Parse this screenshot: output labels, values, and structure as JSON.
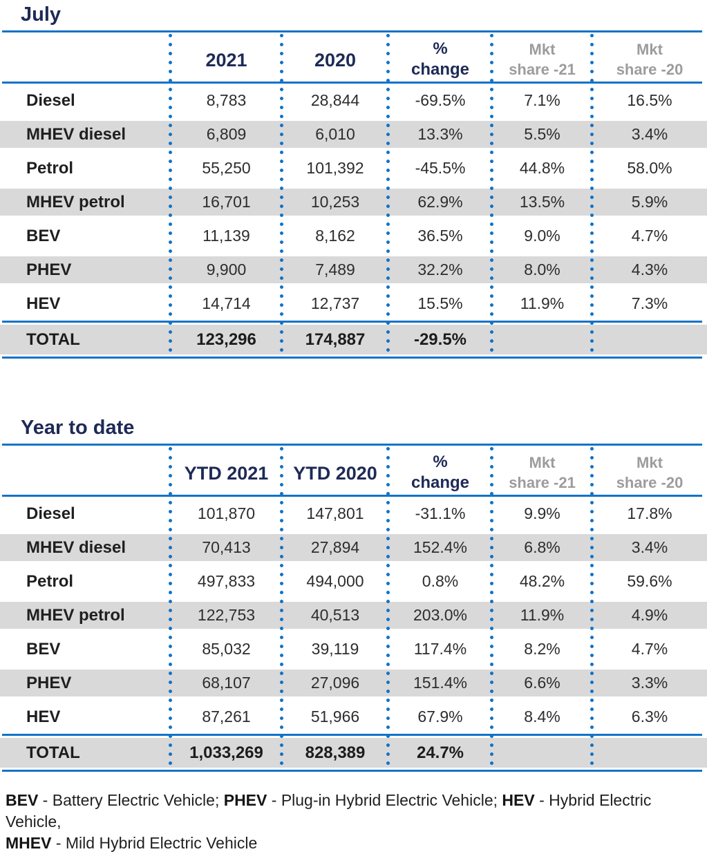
{
  "colors": {
    "rule_blue": "#1273c7",
    "heading_navy": "#1e2a56",
    "muted_header_gray": "#9c9c9c",
    "row_stripe_gray": "#d9d9d9",
    "text_black": "#1f1f1f"
  },
  "july": {
    "title": "July",
    "headers": {
      "year1": "2021",
      "year2": "2020",
      "pct1": "%",
      "pct2": "change",
      "mkt": "Mkt",
      "share21": "share -21",
      "share20": "share -20"
    },
    "rows": [
      {
        "label": "Diesel",
        "y1": "8,783",
        "y2": "28,844",
        "pct": "-69.5%",
        "m21": "7.1%",
        "m20": "16.5%"
      },
      {
        "label": "MHEV diesel",
        "y1": "6,809",
        "y2": "6,010",
        "pct": "13.3%",
        "m21": "5.5%",
        "m20": "3.4%"
      },
      {
        "label": "Petrol",
        "y1": "55,250",
        "y2": "101,392",
        "pct": "-45.5%",
        "m21": "44.8%",
        "m20": "58.0%"
      },
      {
        "label": "MHEV petrol",
        "y1": "16,701",
        "y2": "10,253",
        "pct": "62.9%",
        "m21": "13.5%",
        "m20": "5.9%"
      },
      {
        "label": "BEV",
        "y1": "11,139",
        "y2": "8,162",
        "pct": "36.5%",
        "m21": "9.0%",
        "m20": "4.7%"
      },
      {
        "label": "PHEV",
        "y1": "9,900",
        "y2": "7,489",
        "pct": "32.2%",
        "m21": "8.0%",
        "m20": "4.3%"
      },
      {
        "label": "HEV",
        "y1": "14,714",
        "y2": "12,737",
        "pct": "15.5%",
        "m21": "11.9%",
        "m20": "7.3%"
      }
    ],
    "total": {
      "label": "TOTAL",
      "y1": "123,296",
      "y2": "174,887",
      "pct": "-29.5%",
      "m21": "",
      "m20": ""
    }
  },
  "ytd": {
    "title": "Year to date",
    "headers": {
      "year1": "YTD 2021",
      "year2": "YTD 2020",
      "pct1": "%",
      "pct2": "change",
      "mkt": "Mkt",
      "share21": "share -21",
      "share20": "share -20"
    },
    "rows": [
      {
        "label": "Diesel",
        "y1": "101,870",
        "y2": "147,801",
        "pct": "-31.1%",
        "m21": "9.9%",
        "m20": "17.8%"
      },
      {
        "label": "MHEV diesel",
        "y1": "70,413",
        "y2": "27,894",
        "pct": "152.4%",
        "m21": "6.8%",
        "m20": "3.4%"
      },
      {
        "label": "Petrol",
        "y1": "497,833",
        "y2": "494,000",
        "pct": "0.8%",
        "m21": "48.2%",
        "m20": "59.6%"
      },
      {
        "label": "MHEV petrol",
        "y1": "122,753",
        "y2": "40,513",
        "pct": "203.0%",
        "m21": "11.9%",
        "m20": "4.9%"
      },
      {
        "label": "BEV",
        "y1": "85,032",
        "y2": "39,119",
        "pct": "117.4%",
        "m21": "8.2%",
        "m20": "4.7%"
      },
      {
        "label": "PHEV",
        "y1": "68,107",
        "y2": "27,096",
        "pct": "151.4%",
        "m21": "6.6%",
        "m20": "3.3%"
      },
      {
        "label": "HEV",
        "y1": "87,261",
        "y2": "51,966",
        "pct": "67.9%",
        "m21": "8.4%",
        "m20": "6.3%"
      }
    ],
    "total": {
      "label": "TOTAL",
      "y1": "1,033,269",
      "y2": "828,389",
      "pct": "24.7%",
      "m21": "",
      "m20": ""
    }
  },
  "footnote": {
    "bev_abbr": "BEV",
    "bev_text": " - Battery Electric Vehicle; ",
    "phev_abbr": "PHEV",
    "phev_text": " - Plug-in Hybrid Electric Vehicle; ",
    "hev_abbr": "HEV",
    "hev_text": " - Hybrid Electric Vehicle,",
    "mhev_abbr": "MHEV",
    "mhev_text": " - Mild Hybrid Electric Vehicle"
  }
}
